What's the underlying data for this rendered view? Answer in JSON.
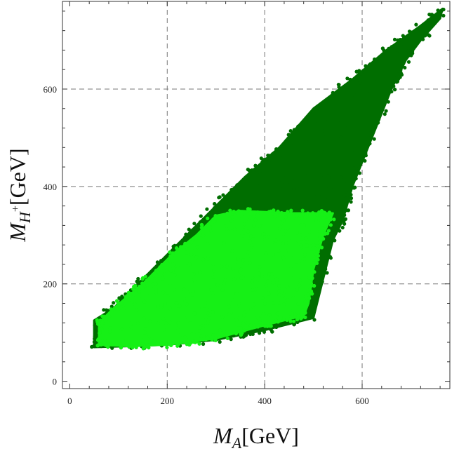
{
  "chart_data": {
    "type": "scatter",
    "title": "",
    "xlabel": {
      "symbol": "M",
      "subscript": "A",
      "unit": "[GeV]"
    },
    "ylabel": {
      "symbol": "M",
      "subscript": "H",
      "superscript": "+",
      "unit": "[GeV]"
    },
    "xlim": [
      -15,
      780
    ],
    "ylim": [
      -15,
      780
    ],
    "x_ticks": [
      0,
      200,
      400,
      600
    ],
    "y_ticks": [
      0,
      200,
      400,
      600
    ],
    "grid": true,
    "grid_lines_x": [
      200,
      400,
      600
    ],
    "grid_lines_y": [
      200,
      400,
      600
    ],
    "legend": null,
    "series": [
      {
        "color": "#006e00",
        "region": {
          "polygon": [
            [
              50,
              70
            ],
            [
              50,
              125
            ],
            [
              90,
              150
            ],
            [
              140,
              200
            ],
            [
              210,
              270
            ],
            [
              280,
              340
            ],
            [
              360,
              420
            ],
            [
              430,
              480
            ],
            [
              500,
              560
            ],
            [
              580,
              620
            ],
            [
              650,
              680
            ],
            [
              720,
              730
            ],
            [
              765,
              765
            ],
            [
              760,
              745
            ],
            [
              720,
              700
            ],
            [
              690,
              660
            ],
            [
              660,
              600
            ],
            [
              620,
              500
            ],
            [
              580,
              400
            ],
            [
              560,
              330
            ],
            [
              540,
              290
            ],
            [
              500,
              130
            ],
            [
              400,
              105
            ],
            [
              300,
              85
            ],
            [
              200,
              75
            ],
            [
              120,
              72
            ]
          ]
        }
      },
      {
        "color": "#16f016",
        "region": {
          "polygon": [
            [
              60,
              75
            ],
            [
              60,
              120
            ],
            [
              90,
              150
            ],
            [
              150,
              200
            ],
            [
              210,
              260
            ],
            [
              260,
              300
            ],
            [
              300,
              340
            ],
            [
              350,
              350
            ],
            [
              460,
              345
            ],
            [
              540,
              345
            ],
            [
              520,
              300
            ],
            [
              500,
              230
            ],
            [
              490,
              160
            ],
            [
              480,
              135
            ],
            [
              400,
              115
            ],
            [
              300,
              88
            ],
            [
              200,
              75
            ],
            [
              120,
              72
            ]
          ]
        }
      }
    ]
  }
}
